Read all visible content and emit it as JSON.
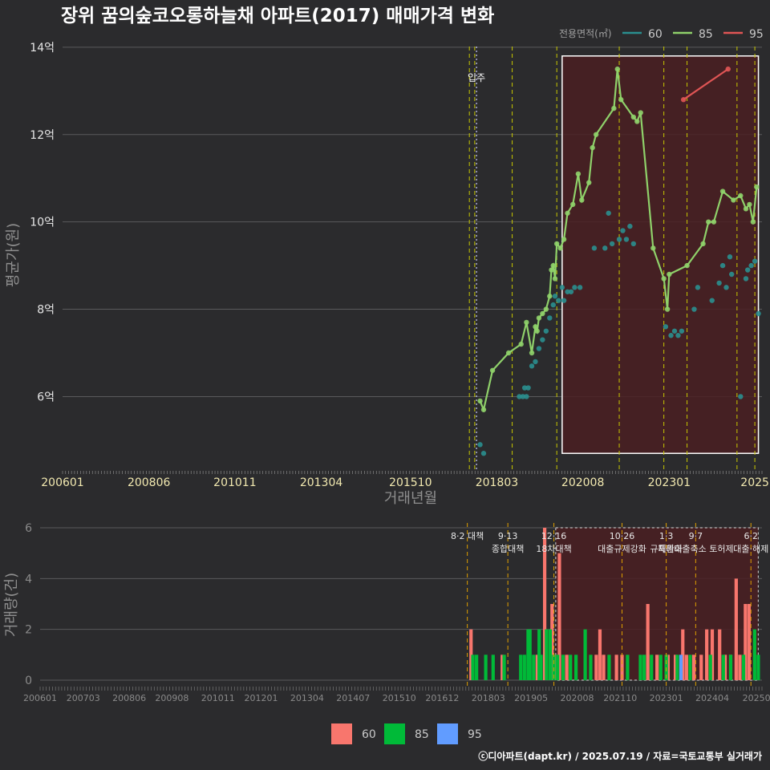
{
  "title": "장위 꿈의숲코오롱하늘채 아파트(2017) 매매가격 변화",
  "footer": "ⓒ디아파트(dapt.kr) / 2025.07.19 / 자료=국토교통부 실거래가",
  "colors": {
    "s60": "#2a8f8f",
    "s85": "#8fd16a",
    "s95": "#e05555",
    "b60": "#f8766d",
    "b85": "#00ba38",
    "b95": "#619cff",
    "policy": "#c8c800",
    "policy2": "#e0a000"
  },
  "chart_data": [
    {
      "type": "line",
      "title": "장위 꿈의숲코오롱하늘채 아파트(2017) 매매가격 변화",
      "xlabel": "거래년월",
      "ylabel": "평균가(원)",
      "x_tick_labels": [
        "200601",
        "200806",
        "201011",
        "201304",
        "201510",
        "201803",
        "202008",
        "202301",
        "2025"
      ],
      "y_tick_labels": [
        "6억",
        "8억",
        "10억",
        "12억",
        "14억"
      ],
      "y_ticks": [
        6,
        8,
        10,
        12,
        14
      ],
      "ylim": [
        4.3,
        14.2
      ],
      "xlim": [
        2006.0,
        2025.6
      ],
      "legend_title": "전용면적(㎡)",
      "legend": [
        "60",
        "85",
        "95"
      ],
      "move_in_label": "입주",
      "move_in_x": 2017.6,
      "highlight_x": [
        2020.0,
        2025.5
      ],
      "highlight_y": [
        4.7,
        13.8
      ],
      "policy_lines": [
        2017.4,
        2017.55,
        2018.6,
        2019.85,
        2021.6,
        2022.85,
        2023.5,
        2024.9,
        2025.4
      ],
      "series": [
        {
          "name": "60",
          "points": [
            [
              2017.7,
              4.9
            ],
            [
              2017.8,
              4.7
            ],
            [
              2018.8,
              6.0
            ],
            [
              2018.9,
              6.0
            ],
            [
              2018.95,
              6.2
            ],
            [
              2019.0,
              6.0
            ],
            [
              2019.05,
              6.2
            ],
            [
              2019.15,
              6.7
            ],
            [
              2019.25,
              6.8
            ],
            [
              2019.35,
              7.1
            ],
            [
              2019.45,
              7.3
            ],
            [
              2019.55,
              7.5
            ],
            [
              2019.65,
              7.8
            ],
            [
              2019.75,
              8.1
            ],
            [
              2019.8,
              8.3
            ],
            [
              2019.9,
              8.2
            ],
            [
              2020.0,
              8.5
            ],
            [
              2020.05,
              8.2
            ],
            [
              2020.15,
              8.4
            ],
            [
              2020.25,
              8.4
            ],
            [
              2020.35,
              8.5
            ],
            [
              2020.5,
              8.5
            ],
            [
              2020.9,
              9.4
            ],
            [
              2021.2,
              9.4
            ],
            [
              2021.3,
              10.2
            ],
            [
              2021.4,
              9.5
            ],
            [
              2021.6,
              9.6
            ],
            [
              2021.7,
              9.8
            ],
            [
              2021.8,
              9.6
            ],
            [
              2021.9,
              9.9
            ],
            [
              2022.0,
              9.5
            ],
            [
              2022.9,
              7.6
            ],
            [
              2023.05,
              7.4
            ],
            [
              2023.15,
              7.5
            ],
            [
              2023.25,
              7.4
            ],
            [
              2023.35,
              7.5
            ],
            [
              2023.7,
              8.0
            ],
            [
              2023.8,
              8.5
            ],
            [
              2024.2,
              8.2
            ],
            [
              2024.4,
              8.6
            ],
            [
              2024.5,
              9.0
            ],
            [
              2024.6,
              8.5
            ],
            [
              2024.7,
              9.2
            ],
            [
              2024.75,
              8.8
            ],
            [
              2025.0,
              6.0
            ],
            [
              2025.15,
              8.7
            ],
            [
              2025.2,
              8.9
            ],
            [
              2025.3,
              9.0
            ],
            [
              2025.4,
              9.1
            ],
            [
              2025.5,
              7.9
            ]
          ]
        },
        {
          "name": "85",
          "points": [
            [
              2017.7,
              5.9
            ],
            [
              2017.8,
              5.7
            ],
            [
              2018.05,
              6.6
            ],
            [
              2018.5,
              7.0
            ],
            [
              2018.85,
              7.2
            ],
            [
              2019.0,
              7.7
            ],
            [
              2019.15,
              7.0
            ],
            [
              2019.25,
              7.6
            ],
            [
              2019.3,
              7.5
            ],
            [
              2019.35,
              7.8
            ],
            [
              2019.45,
              7.9
            ],
            [
              2019.55,
              8.0
            ],
            [
              2019.65,
              8.3
            ],
            [
              2019.7,
              8.9
            ],
            [
              2019.75,
              9.0
            ],
            [
              2019.8,
              8.7
            ],
            [
              2019.85,
              9.5
            ],
            [
              2019.95,
              9.4
            ],
            [
              2020.05,
              9.6
            ],
            [
              2020.15,
              10.2
            ],
            [
              2020.3,
              10.4
            ],
            [
              2020.45,
              11.1
            ],
            [
              2020.55,
              10.5
            ],
            [
              2020.75,
              10.9
            ],
            [
              2020.85,
              11.7
            ],
            [
              2020.95,
              12.0
            ],
            [
              2021.45,
              12.6
            ],
            [
              2021.55,
              13.5
            ],
            [
              2021.65,
              12.8
            ],
            [
              2022.0,
              12.4
            ],
            [
              2022.1,
              12.3
            ],
            [
              2022.2,
              12.5
            ],
            [
              2022.55,
              9.4
            ],
            [
              2022.85,
              8.7
            ],
            [
              2022.95,
              8.0
            ],
            [
              2023.0,
              8.8
            ],
            [
              2023.5,
              9.0
            ],
            [
              2023.95,
              9.5
            ],
            [
              2024.1,
              10.0
            ],
            [
              2024.25,
              10.0
            ],
            [
              2024.5,
              10.7
            ],
            [
              2024.8,
              10.5
            ],
            [
              2025.0,
              10.6
            ],
            [
              2025.15,
              10.3
            ],
            [
              2025.25,
              10.4
            ],
            [
              2025.35,
              10.0
            ],
            [
              2025.45,
              10.8
            ]
          ]
        },
        {
          "name": "95",
          "points": [
            [
              2023.4,
              12.8
            ],
            [
              2024.65,
              13.5
            ]
          ]
        }
      ]
    },
    {
      "type": "bar",
      "xlabel": "",
      "ylabel": "거래량(건)",
      "y_tick_labels": [
        "0",
        "2",
        "4",
        "6"
      ],
      "y_ticks": [
        0,
        2,
        4,
        6
      ],
      "ylim": [
        0,
        6
      ],
      "xlim": [
        2006.0,
        2025.6
      ],
      "x_tick_labels": [
        "200601",
        "200703",
        "200806",
        "200908",
        "201011",
        "201201",
        "201304",
        "201407",
        "201510",
        "201612",
        "201803",
        "201905",
        "202008",
        "202110",
        "202301",
        "202404",
        "20250"
      ],
      "legend": [
        "60",
        "85",
        "95"
      ],
      "highlight_x": [
        2020.0,
        2025.5
      ],
      "policies": [
        {
          "x": 2017.6,
          "label": "8·2 대책",
          "label2": ""
        },
        {
          "x": 2018.7,
          "label": "9·13",
          "label2": "종합대책"
        },
        {
          "x": 2019.95,
          "label": "12·16",
          "label2": "18차대책"
        },
        {
          "x": 2021.8,
          "label": "10·26",
          "label2": "대출규제강화"
        },
        {
          "x": 2023.0,
          "label": "1·3",
          "label2": "규제완화"
        },
        {
          "x": 2023.8,
          "label": "9·7",
          "label2": "특례대출축소 토허제"
        },
        {
          "x": 2025.3,
          "label": "6·2",
          "label2": "대출·해제"
        }
      ],
      "series": [
        {
          "name": "60",
          "values": [
            [
              2017.7,
              2
            ],
            [
              2018.55,
              1
            ],
            [
              2019.5,
              1
            ],
            [
              2019.7,
              6
            ],
            [
              2019.9,
              3
            ],
            [
              2020.0,
              1
            ],
            [
              2020.1,
              5
            ],
            [
              2020.3,
              1
            ],
            [
              2021.1,
              1
            ],
            [
              2021.2,
              2
            ],
            [
              2021.3,
              1
            ],
            [
              2021.65,
              1
            ],
            [
              2021.8,
              1
            ],
            [
              2022.5,
              3
            ],
            [
              2022.75,
              1
            ],
            [
              2023.05,
              1
            ],
            [
              2023.25,
              1
            ],
            [
              2023.45,
              2
            ],
            [
              2023.55,
              1
            ],
            [
              2023.75,
              1
            ],
            [
              2023.95,
              1
            ],
            [
              2024.1,
              2
            ],
            [
              2024.25,
              2
            ],
            [
              2024.45,
              2
            ],
            [
              2024.6,
              1
            ],
            [
              2024.75,
              1
            ],
            [
              2024.9,
              4
            ],
            [
              2025.0,
              1
            ],
            [
              2025.15,
              3
            ],
            [
              2025.25,
              3
            ]
          ]
        },
        {
          "name": "85",
          "values": [
            [
              2017.75,
              1
            ],
            [
              2017.85,
              1
            ],
            [
              2018.1,
              1
            ],
            [
              2018.3,
              1
            ],
            [
              2018.6,
              1
            ],
            [
              2019.05,
              1
            ],
            [
              2019.15,
              1
            ],
            [
              2019.25,
              2
            ],
            [
              2019.3,
              2
            ],
            [
              2019.4,
              1
            ],
            [
              2019.55,
              2
            ],
            [
              2019.6,
              1
            ],
            [
              2019.75,
              2
            ],
            [
              2019.85,
              2
            ],
            [
              2019.95,
              1
            ],
            [
              2020.05,
              1
            ],
            [
              2020.2,
              1
            ],
            [
              2020.4,
              1
            ],
            [
              2020.55,
              1
            ],
            [
              2020.8,
              2
            ],
            [
              2020.95,
              1
            ],
            [
              2021.45,
              1
            ],
            [
              2021.95,
              1
            ],
            [
              2022.3,
              1
            ],
            [
              2022.4,
              1
            ],
            [
              2022.6,
              1
            ],
            [
              2022.85,
              1
            ],
            [
              2023.0,
              1
            ],
            [
              2023.3,
              1
            ],
            [
              2023.65,
              1
            ],
            [
              2024.2,
              1
            ],
            [
              2024.55,
              1
            ],
            [
              2024.75,
              1
            ],
            [
              2025.1,
              1
            ],
            [
              2025.4,
              2
            ],
            [
              2025.5,
              1
            ]
          ]
        },
        {
          "name": "95",
          "values": [
            [
              2023.4,
              1
            ]
          ]
        }
      ]
    }
  ]
}
